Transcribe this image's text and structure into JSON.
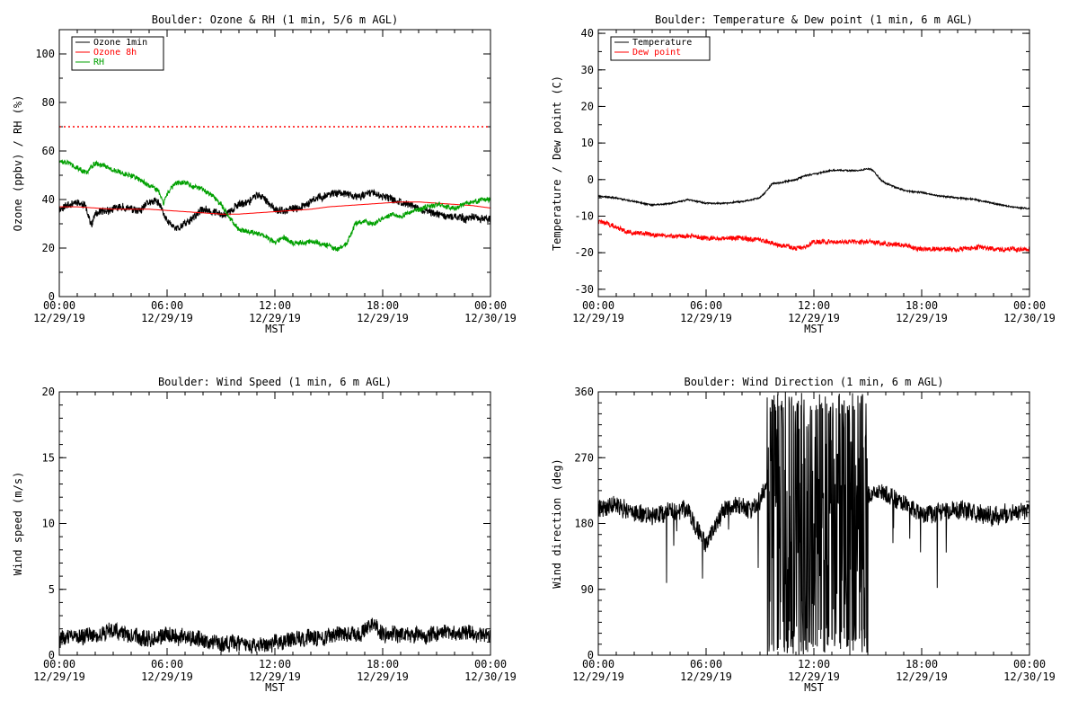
{
  "chart_data": [
    {
      "type": "line",
      "title": "Boulder: Ozone & RH (1 min, 5/6 m AGL)",
      "xlabel": "MST",
      "ylabel": "Ozone (ppbv) / RH (%)",
      "xticks": [
        [
          "00:00",
          "12/29/19"
        ],
        [
          "06:00",
          "12/29/19"
        ],
        [
          "12:00",
          "12/29/19"
        ],
        [
          "18:00",
          "12/29/19"
        ],
        [
          "00:00",
          "12/30/19"
        ]
      ],
      "xlim": [
        0,
        24
      ],
      "ylim": [
        0,
        110
      ],
      "yticks": [
        0,
        20,
        40,
        60,
        80,
        100
      ],
      "yminor": 10,
      "legend_position": "top-left",
      "reference_line": {
        "y": 70,
        "color": "#ff0000",
        "style": "dotted"
      },
      "series": [
        {
          "name": "Ozone 1min",
          "color": "#000000",
          "noise": 1.5,
          "seed": 11,
          "x": [
            0,
            0.5,
            1,
            1.5,
            1.8,
            2,
            2.5,
            3,
            3.5,
            4,
            4.5,
            5,
            5.5,
            6,
            6.5,
            7,
            7.5,
            8,
            8.5,
            9,
            9.5,
            10,
            10.5,
            11,
            11.5,
            12,
            12.5,
            13,
            13.5,
            14,
            14.5,
            15,
            15.5,
            16,
            16.5,
            17,
            17.5,
            18,
            18.5,
            19,
            19.5,
            20,
            20.5,
            21,
            21.5,
            22,
            22.5,
            23,
            23.5,
            24
          ],
          "y": [
            36,
            38,
            39,
            37,
            29,
            34,
            35,
            36,
            37,
            36,
            35,
            39,
            39,
            31,
            28,
            30,
            33,
            36,
            35,
            34,
            35,
            38,
            39,
            42,
            40,
            36,
            35,
            36,
            37,
            39,
            41,
            42,
            43,
            42,
            41,
            42,
            43,
            41,
            40,
            39,
            38,
            36,
            35,
            34,
            33,
            33,
            32,
            33,
            32,
            32
          ]
        },
        {
          "name": "Ozone 8h",
          "color": "#ff0000",
          "noise": 0,
          "seed": 12,
          "x": [
            0,
            1,
            2,
            3,
            4,
            5,
            6,
            7,
            8,
            9,
            10,
            11,
            12,
            13,
            14,
            15,
            16,
            17,
            18,
            19,
            20,
            21,
            22,
            23,
            24
          ],
          "y": [
            37,
            37,
            36.5,
            36,
            36,
            36,
            35.5,
            35,
            34.5,
            34,
            34,
            34.5,
            35,
            35.5,
            36,
            37,
            37.5,
            38,
            38.5,
            39,
            39,
            38.5,
            38,
            37.5,
            36.5
          ]
        },
        {
          "name": "RH",
          "color": "#00a000",
          "noise": 1.0,
          "seed": 13,
          "x": [
            0,
            0.5,
            1,
            1.5,
            2,
            2.5,
            3,
            3.5,
            4,
            4.5,
            5,
            5.5,
            5.8,
            6,
            6.3,
            6.5,
            7,
            7.5,
            8,
            8.5,
            9,
            9.5,
            10,
            10.5,
            11,
            11.5,
            12,
            12.5,
            13,
            13.5,
            14,
            14.5,
            15,
            15.5,
            16,
            16.5,
            17,
            17.5,
            18,
            18.5,
            19,
            19.5,
            20,
            20.5,
            21,
            21.5,
            22,
            22.5,
            23,
            23.5,
            24
          ],
          "y": [
            56,
            55,
            53,
            51,
            55,
            54,
            52,
            51,
            50,
            48,
            46,
            44,
            38,
            42,
            45,
            47,
            47,
            45,
            44,
            42,
            38,
            32,
            28,
            27,
            26,
            25,
            22,
            24,
            22,
            22,
            23,
            22,
            21,
            19,
            22,
            30,
            31,
            30,
            32,
            34,
            33,
            35,
            36,
            37,
            38,
            37,
            36,
            38,
            39,
            40,
            40
          ]
        }
      ]
    },
    {
      "type": "line",
      "title": "Boulder: Temperature & Dew point (1 min, 6 m AGL)",
      "xlabel": "MST",
      "ylabel": "Temperature / Dew point (C)",
      "xticks": [
        [
          "00:00",
          "12/29/19"
        ],
        [
          "06:00",
          "12/29/19"
        ],
        [
          "12:00",
          "12/29/19"
        ],
        [
          "18:00",
          "12/29/19"
        ],
        [
          "00:00",
          "12/30/19"
        ]
      ],
      "xlim": [
        0,
        24
      ],
      "ylim": [
        -32,
        41
      ],
      "yticks": [
        -30,
        -20,
        -10,
        0,
        10,
        20,
        30,
        40
      ],
      "yminor": 5,
      "legend_position": "top-left",
      "series": [
        {
          "name": "Temperature",
          "color": "#000000",
          "noise": 0.2,
          "seed": 21,
          "x": [
            0,
            1,
            2,
            3,
            4,
            5,
            6,
            7,
            8,
            9,
            9.3,
            9.7,
            10,
            10.5,
            11,
            11.5,
            12,
            12.5,
            13,
            13.5,
            14,
            14.5,
            15,
            15.3,
            15.7,
            16,
            16.5,
            17,
            18,
            19,
            20,
            21,
            22,
            23,
            24
          ],
          "y": [
            -4.5,
            -5,
            -6,
            -7,
            -6.5,
            -5.5,
            -6.5,
            -6.5,
            -6,
            -5,
            -3.5,
            -1,
            -1,
            -0.5,
            0,
            1,
            1.5,
            2,
            2.5,
            2.5,
            2.5,
            2.5,
            3,
            2.5,
            0,
            -1,
            -2,
            -3,
            -3.5,
            -4.5,
            -5,
            -5.5,
            -6.5,
            -7.5,
            -8
          ]
        },
        {
          "name": "Dew point",
          "color": "#ff0000",
          "noise": 0.6,
          "seed": 22,
          "x": [
            0,
            0.5,
            1,
            1.5,
            2,
            3,
            4,
            5,
            6,
            7,
            8,
            9,
            9.5,
            10,
            10.5,
            11,
            11.5,
            12,
            12.5,
            13,
            14,
            15,
            16,
            17,
            18,
            19,
            20,
            21,
            22,
            23,
            24
          ],
          "y": [
            -11.5,
            -12,
            -13,
            -14,
            -14.5,
            -15,
            -15.5,
            -15.5,
            -16,
            -16,
            -16,
            -16.5,
            -17,
            -18,
            -18,
            -19,
            -18.5,
            -17,
            -17,
            -17,
            -17,
            -17,
            -17.5,
            -18,
            -19,
            -19,
            -19,
            -18.5,
            -19,
            -19,
            -19
          ]
        }
      ]
    },
    {
      "type": "line",
      "title": "Boulder: Wind Speed (1 min, 6 m AGL)",
      "xlabel": "MST",
      "ylabel": "Wind speed (m/s)",
      "xticks": [
        [
          "00:00",
          "12/29/19"
        ],
        [
          "06:00",
          "12/29/19"
        ],
        [
          "12:00",
          "12/29/19"
        ],
        [
          "18:00",
          "12/29/19"
        ],
        [
          "00:00",
          "12/30/19"
        ]
      ],
      "xlim": [
        0,
        24
      ],
      "ylim": [
        0,
        20
      ],
      "yticks": [
        0,
        5,
        10,
        15,
        20
      ],
      "yminor": 1,
      "series": [
        {
          "name": "",
          "color": "#000000",
          "noise": 0.6,
          "seed": 31,
          "x": [
            0,
            1,
            2,
            3,
            4,
            5,
            6,
            7,
            8,
            9,
            10,
            11,
            12,
            13,
            14,
            15,
            16,
            17,
            17.5,
            18,
            19,
            20,
            21,
            22,
            23,
            24
          ],
          "y": [
            1.2,
            1.5,
            1.5,
            1.8,
            1.5,
            1.3,
            1.5,
            1.3,
            1.2,
            1,
            0.8,
            0.7,
            1,
            1.2,
            1.3,
            1.5,
            1.6,
            1.7,
            2.5,
            1.5,
            1.6,
            1.5,
            1.6,
            1.7,
            1.7,
            1.5
          ]
        }
      ]
    },
    {
      "type": "line",
      "title": "Boulder: Wind Direction (1 min, 6 m AGL)",
      "xlabel": "MST",
      "ylabel": "Wind direction (deg)",
      "xticks": [
        [
          "00:00",
          "12/29/19"
        ],
        [
          "06:00",
          "12/29/19"
        ],
        [
          "12:00",
          "12/29/19"
        ],
        [
          "18:00",
          "12/29/19"
        ],
        [
          "00:00",
          "12/30/19"
        ]
      ],
      "xlim": [
        0,
        24
      ],
      "ylim": [
        0,
        360
      ],
      "yticks": [
        0,
        90,
        180,
        270,
        360
      ],
      "yminor": 15,
      "series": [
        {
          "name": "",
          "color": "#000000",
          "noise": 12,
          "seed": 41,
          "x": [
            0,
            1,
            2,
            3,
            4,
            5,
            5.5,
            6,
            6.5,
            7,
            8,
            8.5,
            9,
            9.5,
            10,
            11,
            12,
            13,
            14,
            15,
            15.5,
            16,
            17,
            18,
            19,
            20,
            21,
            22,
            23,
            24
          ],
          "y": [
            200,
            205,
            195,
            190,
            195,
            200,
            170,
            150,
            175,
            200,
            205,
            195,
            210,
            240,
            180,
            180,
            180,
            180,
            180,
            220,
            225,
            220,
            210,
            190,
            195,
            200,
            195,
            190,
            195,
            195
          ],
          "chaos": [
            9.4,
            15.0
          ]
        }
      ]
    }
  ]
}
